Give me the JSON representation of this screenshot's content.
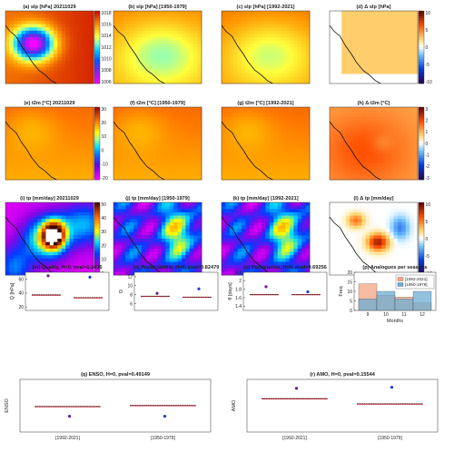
{
  "maps": {
    "rows": [
      {
        "panels": [
          {
            "title": "(a) slp [hPa] 20211029",
            "field": "slp_low"
          },
          {
            "title": "(b) slp [hPa] [1950-1979]",
            "field": "slp_warm"
          },
          {
            "title": "(c) slp [hPa] [1992-2021]",
            "field": "slp_warm2"
          },
          {
            "title": "(d) Δ slp [hPa]",
            "field": "slp_diff"
          }
        ],
        "cbars": [
          {
            "ticks": [
              "1018",
              "1016",
              "1014",
              "1012",
              "1010",
              "1008",
              "1006"
            ],
            "scheme": "slp"
          },
          {
            "ticks": [
              "10",
              "5",
              "0",
              "-5",
              "-10"
            ],
            "scheme": "diff"
          }
        ]
      },
      {
        "panels": [
          {
            "title": "(e) t2m [°C] 20211029",
            "field": "t2m"
          },
          {
            "title": "(f) t2m [°C] [1950-1979]",
            "field": "t2m"
          },
          {
            "title": "(g) t2m [°C] [1992-2021]",
            "field": "t2m"
          },
          {
            "title": "(h) Δ t2m [°C]",
            "field": "t2m_diff"
          }
        ],
        "cbars": [
          {
            "ticks": [
              "30",
              "20",
              "10",
              "0",
              "-10",
              "-20"
            ],
            "scheme": "temp"
          },
          {
            "ticks": [
              "3",
              "2",
              "1",
              "0",
              "-1",
              "-2",
              "-3"
            ],
            "scheme": "diff"
          }
        ]
      },
      {
        "panels": [
          {
            "title": "(i) tp [mm/day] 20211029",
            "field": "tp_event"
          },
          {
            "title": "(j) tp [mm/day] [1950-1979]",
            "field": "tp_clim"
          },
          {
            "title": "(k) tp [mm/day] [1992-2021]",
            "field": "tp_clim"
          },
          {
            "title": "(l) Δ tp [mm/day]",
            "field": "tp_diff"
          }
        ],
        "cbars": [
          {
            "ticks": [
              "50",
              "40",
              "30",
              "20",
              "10",
              "0"
            ],
            "scheme": "precip"
          },
          {
            "ticks": [
              "10",
              "5",
              "0",
              "-5",
              "-10"
            ],
            "scheme": "diff"
          }
        ]
      }
    ]
  },
  "chart_data": [
    {
      "type": "violin",
      "title": "(m)    Quality, H=0, pval=0.2436",
      "ylabel": "Q [hPa]",
      "ylim": [
        15,
        70
      ],
      "yticks": [
        20,
        40,
        60
      ],
      "series": [
        {
          "name": "[1992-2021]",
          "median": 37,
          "mean": 38,
          "event": 65,
          "color": "#f4a582"
        },
        {
          "name": "[1950-1979]",
          "median": 33,
          "mean": 34,
          "event": 63,
          "color": "#6baed6"
        }
      ]
    },
    {
      "type": "violin",
      "title": "(n)    Predictability, H=0, pval=0.82479",
      "ylabel": "D",
      "ylim": [
        4.5,
        13
      ],
      "yticks": [
        6,
        8,
        10,
        12
      ],
      "series": [
        {
          "name": "[1992-2021]",
          "median": 7.6,
          "mean": 7.7,
          "event": 8.3,
          "color": "#f4a582"
        },
        {
          "name": "[1950-1979]",
          "median": 7.4,
          "mean": 7.5,
          "event": 9.3,
          "color": "#6baed6"
        }
      ]
    },
    {
      "type": "violin",
      "title": "(o)    Persistence, H=0, pval=0.69256",
      "ylabel": "θ [days]",
      "ylim": [
        1.3,
        2.2
      ],
      "yticks": [
        1.4,
        1.6,
        1.8,
        2.0,
        2.2
      ],
      "series": [
        {
          "name": "[1992-2021]",
          "median": 1.67,
          "mean": 1.68,
          "event": 1.86,
          "color": "#f4a582"
        },
        {
          "name": "[1950-1979]",
          "median": 1.67,
          "mean": 1.68,
          "event": 1.74,
          "color": "#6baed6"
        }
      ]
    },
    {
      "type": "bar",
      "title": "(p) Analogues per seasons",
      "xlabel": "Months",
      "ylabel": "Freq",
      "categories": [
        "9",
        "10",
        "11",
        "12"
      ],
      "ylim": [
        0,
        20
      ],
      "yticks": [
        0,
        5,
        10,
        15,
        20
      ],
      "legend": "top-right",
      "series": [
        {
          "name": "[1992-2021]",
          "values": [
            14,
            8,
            7,
            4
          ],
          "color": "#f4a582"
        },
        {
          "name": "[1950-1979]",
          "values": [
            6,
            10,
            6,
            10
          ],
          "color": "#6baed6"
        }
      ]
    },
    {
      "type": "violin",
      "title": "(q)    ENSO, H=0, pval=0.49149",
      "ylabel": "ENSO",
      "ylim": [
        -2.5,
        2.5
      ],
      "yticks": [],
      "categories": [
        "[1992-2021]",
        "[1950-1979]"
      ],
      "series": [
        {
          "name": "[1992-2021]",
          "median": -0.1,
          "mean": -0.05,
          "event": -1.0,
          "color": "#f4a582"
        },
        {
          "name": "[1950-1979]",
          "median": 0.0,
          "mean": 0.05,
          "event": -1.0,
          "color": "#6baed6"
        }
      ]
    },
    {
      "type": "violin",
      "title": "(r)    AMO, H=0, pval=0.15544",
      "ylabel": "AMO",
      "ylim": [
        -0.5,
        0.5
      ],
      "yticks": [],
      "categories": [
        "[1992-2021]",
        "[1950-1979]"
      ],
      "series": [
        {
          "name": "[1992-2021]",
          "median": 0.13,
          "mean": 0.14,
          "event": 0.33,
          "color": "#f4a582"
        },
        {
          "name": "[1950-1979]",
          "median": 0.03,
          "mean": 0.04,
          "event": 0.35,
          "color": "#6baed6"
        }
      ]
    }
  ]
}
